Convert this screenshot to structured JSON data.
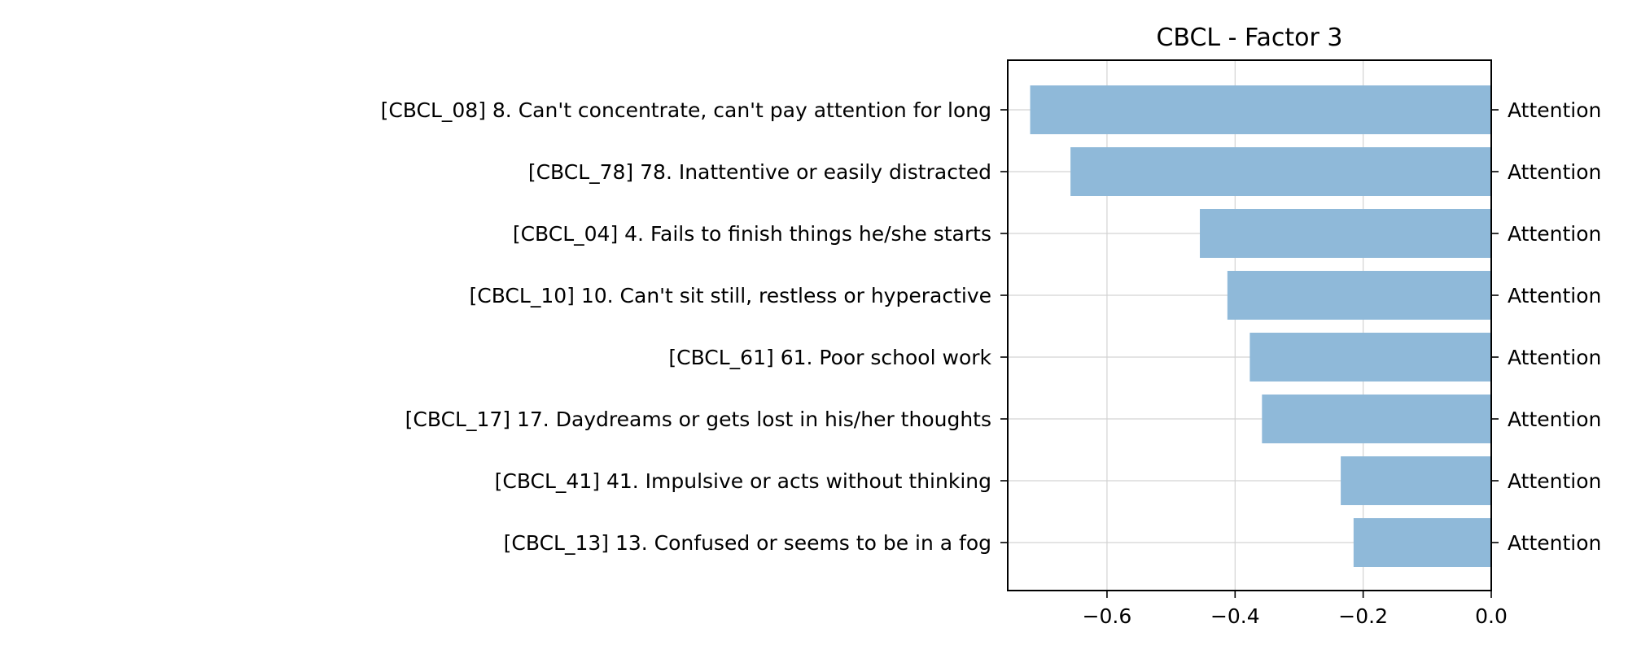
{
  "chart_data": {
    "type": "bar",
    "orientation": "horizontal",
    "title": "CBCL - Factor 3",
    "xlabel": "",
    "ylabel": "",
    "xlim": [
      -0.755,
      0.0
    ],
    "xticks": [
      -0.6,
      -0.4,
      -0.2,
      0.0
    ],
    "xtick_labels": [
      "−0.6",
      "−0.4",
      "−0.2",
      "0.0"
    ],
    "grid": true,
    "bar_color": "#8fb9d9",
    "grid_color": "#d3d3d3",
    "categories": [
      "[CBCL_08] 8. Can't concentrate, can't pay attention for long",
      "[CBCL_78] 78. Inattentive or easily distracted",
      "[CBCL_04] 4. Fails to finish things he/she starts",
      "[CBCL_10] 10. Can't sit still, restless or hyperactive",
      "[CBCL_61] 61. Poor school work",
      "[CBCL_17] 17. Daydreams or gets lost in his/her thoughts",
      "[CBCL_41] 41. Impulsive or acts without thinking",
      "[CBCL_13] 13. Confused or seems to be in a fog"
    ],
    "values": [
      -0.72,
      -0.657,
      -0.455,
      -0.412,
      -0.377,
      -0.358,
      -0.235,
      -0.215
    ],
    "right_labels": [
      "Attention",
      "Attention",
      "Attention",
      "Attention",
      "Attention",
      "Attention",
      "Attention",
      "Attention"
    ]
  }
}
